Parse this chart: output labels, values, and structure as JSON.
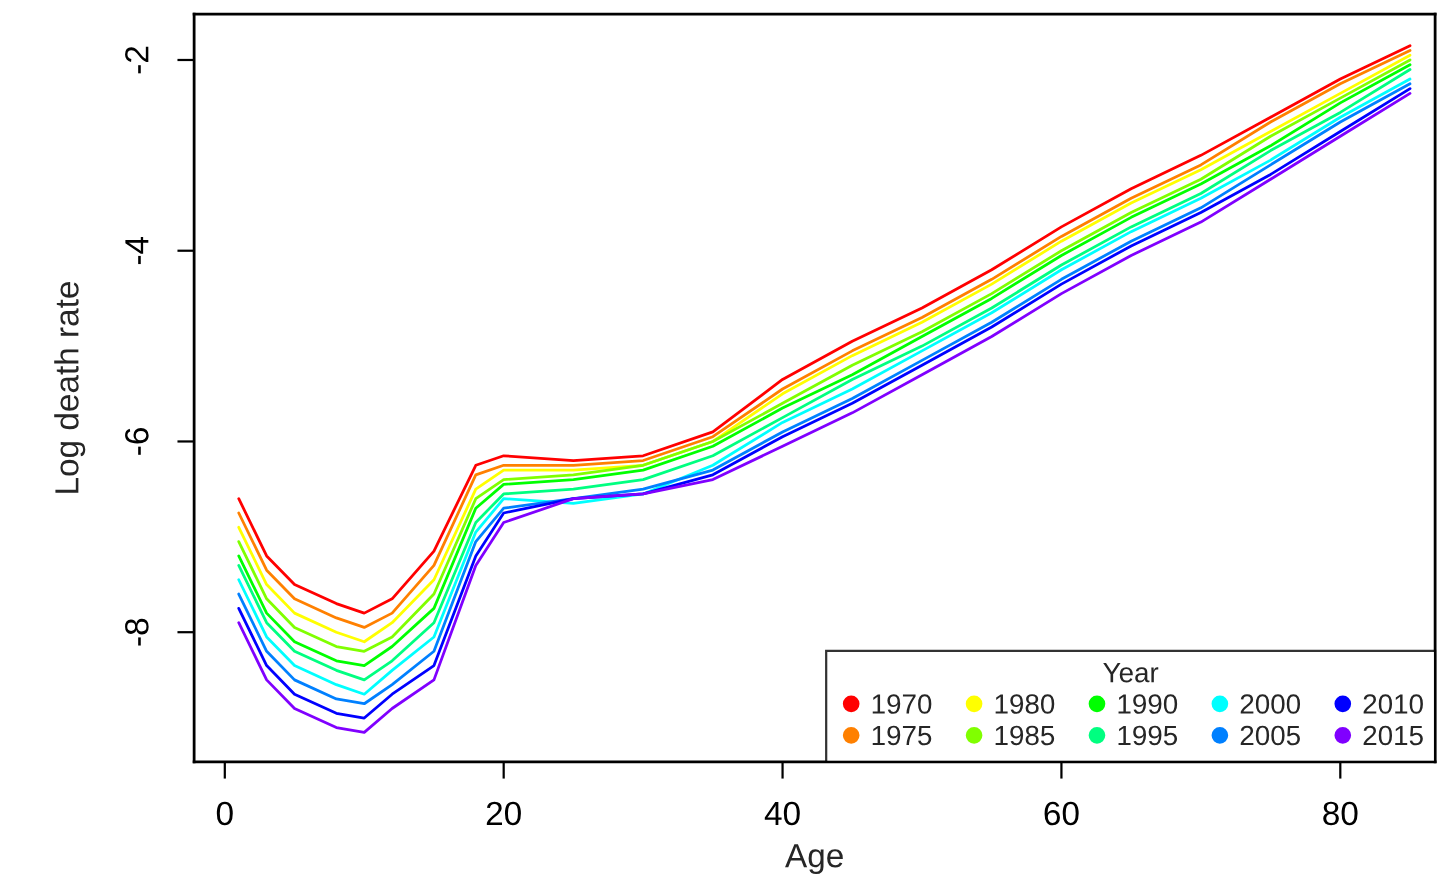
{
  "chart_data": {
    "type": "line",
    "xlabel": "Age",
    "ylabel": "Log death rate",
    "legend_title": "Year",
    "legend": "bottom right",
    "grid": false,
    "marker": "none",
    "line_style": "solid",
    "xlim": [
      -2.2,
      86.8
    ],
    "ylim": [
      -9.36,
      -1.52
    ],
    "xticks": [
      0,
      20,
      40,
      60,
      80
    ],
    "yticks": [
      -8,
      -6,
      -4,
      -2
    ],
    "x": [
      1,
      3,
      5,
      8,
      10,
      12,
      15,
      18,
      20,
      25,
      30,
      35,
      40,
      45,
      50,
      55,
      60,
      65,
      70,
      75,
      80,
      85
    ],
    "series": [
      {
        "name": "1970",
        "color": "#ff0000",
        "values": [
          -6.6,
          -7.2,
          -7.5,
          -7.7,
          -7.8,
          -7.65,
          -7.15,
          -6.25,
          -6.15,
          -6.2,
          -6.15,
          -5.9,
          -5.35,
          -4.95,
          -4.6,
          -4.2,
          -3.75,
          -3.35,
          -3.0,
          -2.6,
          -2.2,
          -1.85
        ]
      },
      {
        "name": "1975",
        "color": "#ff8000",
        "values": [
          -6.75,
          -7.35,
          -7.65,
          -7.85,
          -7.95,
          -7.8,
          -7.3,
          -6.35,
          -6.25,
          -6.25,
          -6.2,
          -5.95,
          -5.45,
          -5.05,
          -4.7,
          -4.3,
          -3.85,
          -3.45,
          -3.1,
          -2.65,
          -2.25,
          -1.9
        ]
      },
      {
        "name": "1980",
        "color": "#ffff00",
        "values": [
          -6.9,
          -7.5,
          -7.8,
          -8.0,
          -8.1,
          -7.9,
          -7.45,
          -6.5,
          -6.3,
          -6.3,
          -6.25,
          -6.0,
          -5.5,
          -5.1,
          -4.75,
          -4.35,
          -3.9,
          -3.5,
          -3.15,
          -2.75,
          -2.35,
          -1.95
        ]
      },
      {
        "name": "1985",
        "color": "#80ff00",
        "values": [
          -7.05,
          -7.65,
          -7.95,
          -8.15,
          -8.2,
          -8.05,
          -7.6,
          -6.6,
          -6.4,
          -6.35,
          -6.25,
          -6.0,
          -5.6,
          -5.2,
          -4.85,
          -4.45,
          -4.0,
          -3.6,
          -3.25,
          -2.8,
          -2.4,
          -2.0
        ]
      },
      {
        "name": "1990",
        "color": "#00ff00",
        "values": [
          -7.2,
          -7.8,
          -8.1,
          -8.3,
          -8.35,
          -8.15,
          -7.75,
          -6.7,
          -6.45,
          -6.4,
          -6.3,
          -6.05,
          -5.65,
          -5.3,
          -4.9,
          -4.5,
          -4.05,
          -3.65,
          -3.3,
          -2.9,
          -2.45,
          -2.05
        ]
      },
      {
        "name": "1995",
        "color": "#00ff80",
        "values": [
          -7.3,
          -7.9,
          -8.2,
          -8.4,
          -8.5,
          -8.3,
          -7.9,
          -6.85,
          -6.55,
          -6.5,
          -6.4,
          -6.15,
          -5.75,
          -5.35,
          -5.0,
          -4.6,
          -4.15,
          -3.75,
          -3.4,
          -2.95,
          -2.55,
          -2.1
        ]
      },
      {
        "name": "2000",
        "color": "#00ffff",
        "values": [
          -7.45,
          -8.05,
          -8.35,
          -8.55,
          -8.65,
          -8.4,
          -8.05,
          -6.95,
          -6.6,
          -6.65,
          -6.55,
          -6.25,
          -5.8,
          -5.45,
          -5.05,
          -4.65,
          -4.2,
          -3.8,
          -3.45,
          -3.05,
          -2.6,
          -2.2
        ]
      },
      {
        "name": "2005",
        "color": "#0080ff",
        "values": [
          -7.6,
          -8.2,
          -8.5,
          -8.7,
          -8.75,
          -8.55,
          -8.2,
          -7.05,
          -6.7,
          -6.6,
          -6.5,
          -6.3,
          -5.9,
          -5.55,
          -5.15,
          -4.75,
          -4.3,
          -3.9,
          -3.55,
          -3.1,
          -2.65,
          -2.25
        ]
      },
      {
        "name": "2010",
        "color": "#0000ff",
        "values": [
          -7.75,
          -8.35,
          -8.65,
          -8.85,
          -8.9,
          -8.65,
          -8.35,
          -7.2,
          -6.75,
          -6.6,
          -6.55,
          -6.35,
          -5.95,
          -5.6,
          -5.2,
          -4.8,
          -4.35,
          -3.95,
          -3.6,
          -3.2,
          -2.75,
          -2.3
        ]
      },
      {
        "name": "2015",
        "color": "#8000ff",
        "values": [
          -7.9,
          -8.5,
          -8.8,
          -9.0,
          -9.05,
          -8.8,
          -8.5,
          -7.3,
          -6.85,
          -6.6,
          -6.55,
          -6.4,
          -6.05,
          -5.7,
          -5.3,
          -4.9,
          -4.45,
          -4.05,
          -3.7,
          -3.25,
          -2.8,
          -2.35
        ]
      }
    ]
  }
}
